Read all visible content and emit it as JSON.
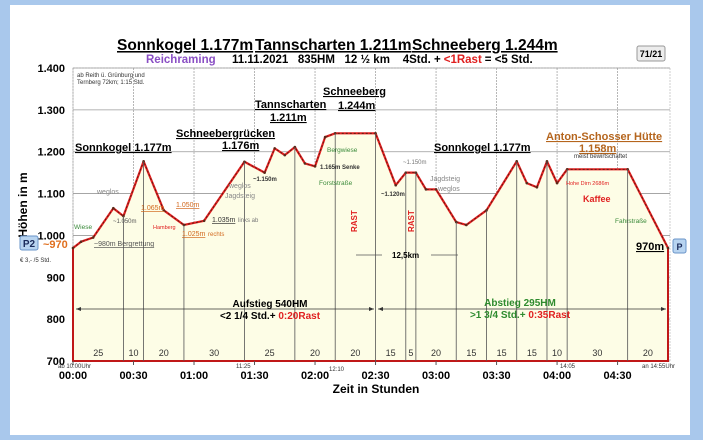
{
  "header": {
    "title_parts": [
      "Sonnkogel 1.177m",
      "Tannscharten 1.211m",
      "Schneeberg 1.244m"
    ],
    "location": "Reichraming",
    "info": "11.11.2021   835HM   12 ½ km    4Std. +",
    "rast": "<1Rast",
    "total": "= <5 Std.",
    "badge": "71/21",
    "accent_purple": "#8a4fc4"
  },
  "chart_data": {
    "type": "area",
    "xlabel": "Zeit in Stunden",
    "ylabel": "Höhen in m",
    "ylim": [
      700,
      1400
    ],
    "xlim_minutes": [
      0,
      295
    ],
    "yticks": [
      "1.400",
      "1.300",
      "1.200",
      "1.100",
      "1.000",
      "900",
      "800",
      "700"
    ],
    "xticks": [
      "00:00",
      "00:30",
      "01:00",
      "01:30",
      "02:00",
      "02:30",
      "03:00",
      "03:30",
      "04:00",
      "04:30"
    ],
    "grid": true,
    "line_color": "#e02020",
    "fill_color": "#fdfde6",
    "profile": [
      {
        "t": 0,
        "h": 970
      },
      {
        "t": 4,
        "h": 985
      },
      {
        "t": 10,
        "h": 995
      },
      {
        "t": 20,
        "h": 1065
      },
      {
        "t": 25,
        "h": 1046
      },
      {
        "t": 35,
        "h": 1177
      },
      {
        "t": 45,
        "h": 1060
      },
      {
        "t": 55,
        "h": 1025
      },
      {
        "t": 65,
        "h": 1035
      },
      {
        "t": 85,
        "h": 1176
      },
      {
        "t": 95,
        "h": 1150
      },
      {
        "t": 100,
        "h": 1208
      },
      {
        "t": 105,
        "h": 1192
      },
      {
        "t": 110,
        "h": 1211
      },
      {
        "t": 115,
        "h": 1172
      },
      {
        "t": 120,
        "h": 1165
      },
      {
        "t": 125,
        "h": 1235
      },
      {
        "t": 130,
        "h": 1244
      },
      {
        "t": 150,
        "h": 1244
      },
      {
        "t": 160,
        "h": 1120
      },
      {
        "t": 165,
        "h": 1150
      },
      {
        "t": 170,
        "h": 1150
      },
      {
        "t": 175,
        "h": 1110
      },
      {
        "t": 180,
        "h": 1110
      },
      {
        "t": 190,
        "h": 1032
      },
      {
        "t": 195,
        "h": 1025
      },
      {
        "t": 205,
        "h": 1060
      },
      {
        "t": 220,
        "h": 1177
      },
      {
        "t": 225,
        "h": 1125
      },
      {
        "t": 230,
        "h": 1115
      },
      {
        "t": 235,
        "h": 1177
      },
      {
        "t": 240,
        "h": 1125
      },
      {
        "t": 245,
        "h": 1158
      },
      {
        "t": 275,
        "h": 1158
      },
      {
        "t": 295,
        "h": 970
      }
    ],
    "segments": [
      {
        "min": 25,
        "rest": false
      },
      {
        "min": 10,
        "rest": false
      },
      {
        "min": 20,
        "rest": false
      },
      {
        "min": 30,
        "rest": false
      },
      {
        "min": 25,
        "rest": false
      },
      {
        "min": 20,
        "rest": false
      },
      {
        "min": 20,
        "rest": true
      },
      {
        "min": 15,
        "rest": false
      },
      {
        "min": 5,
        "rest": true
      },
      {
        "min": 20,
        "rest": false
      },
      {
        "min": 15,
        "rest": false
      },
      {
        "min": 15,
        "rest": false
      },
      {
        "min": 15,
        "rest": false
      },
      {
        "min": 10,
        "rest": false
      },
      {
        "min": 30,
        "rest": true
      },
      {
        "min": 20,
        "rest": false
      }
    ],
    "time_marks": {
      "start": "ab 10:00Uhr",
      "t1": "11:25",
      "t2": "12:10",
      "t3": "14:05",
      "end": "an 14:55Uhr"
    }
  },
  "annotations": {
    "note": [
      "ab Reith ü. Grünburg und",
      "Ternberg 72km; 1:15 Std."
    ],
    "sonnkogel1": "Sonnkogel 1.177m",
    "schneeberg_ruecken": [
      "Schneebergrücken",
      "1.176m"
    ],
    "tannscharten": [
      "Tannscharten",
      "1.211m"
    ],
    "schneeberg": [
      "Schneeberg",
      "1.244m"
    ],
    "sonnkogel2": "Sonnkogel 1.177m",
    "huette": [
      "Anton-Schosser Hütte",
      "1.158m"
    ],
    "huette_note": "meist bewirtschaftet",
    "hohe_dirn": "Hohe Dirn 2686m",
    "kaffee": "Kaffee",
    "wiese": "Wiese",
    "wegl1": "weglos",
    "m1050a": "~1.050m",
    "m1065": "1.065m",
    "m1050b": "1.050m",
    "hamberg": "Hamberg",
    "m1025": "1.025m",
    "rechts": "rechts",
    "m1035": "1.035m",
    "links_ab": "links ab",
    "weglos_jagd": [
      "weglos",
      "Jagdsteig"
    ],
    "m1150a": "~1.150m",
    "bergwiese": "Bergwiese",
    "senke": "1.165m Senke",
    "forststrasse": "Forststraße",
    "m1150b": "~1.150m",
    "m1120": "~1.120m",
    "jagd2": [
      "Jagdsteig",
      "weglos"
    ],
    "fahrstrasse": "Fahrstraße",
    "rast": "RAST",
    "bergrettung": "~980m Bergrettung",
    "p2": "P2",
    "p2_alt": "~970",
    "p2_fee": "€ 3,- /5 Std.",
    "p": "P",
    "end_alt": "970m",
    "distance": "12,5km",
    "aufstieg": [
      "Aufstieg 540HM",
      "<2 1/4 Std.+ ",
      "0:20Rast"
    ],
    "abstieg": [
      "Abstieg 295HM",
      ">1 3/4 Std.+ ",
      "0:35Rast"
    ]
  }
}
